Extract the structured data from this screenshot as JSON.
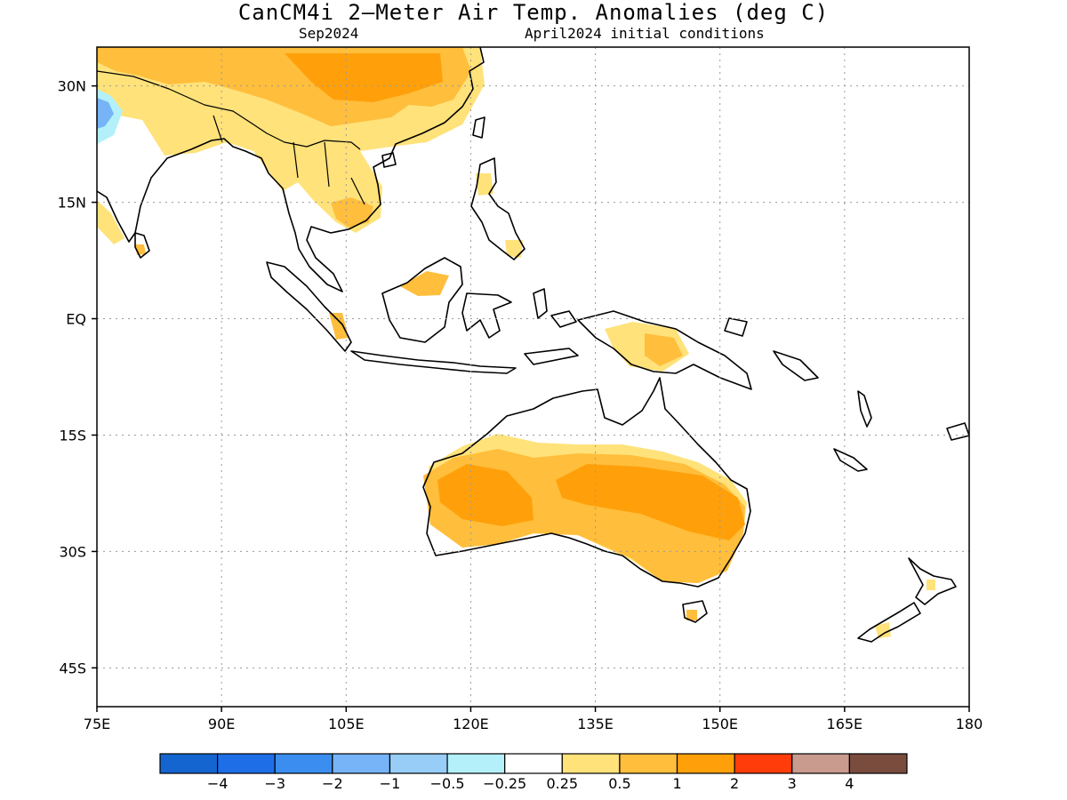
{
  "title": "CanCM4i 2—Meter Air Temp. Anomalies (deg C)",
  "subtitle_left": "Sep2024",
  "subtitle_right": "April2024 initial conditions",
  "map": {
    "lon_range": [
      75,
      180
    ],
    "lat_range": [
      -50,
      35
    ],
    "grid": "dotted",
    "lat_ticks": [
      {
        "label": "30N",
        "lat": 30
      },
      {
        "label": "15N",
        "lat": 15
      },
      {
        "label": "EQ",
        "lat": 0
      },
      {
        "label": "15S",
        "lat": -15
      },
      {
        "label": "30S",
        "lat": -30
      },
      {
        "label": "45S",
        "lat": -45
      }
    ],
    "lon_ticks": [
      {
        "label": "75E",
        "lon": 75
      },
      {
        "label": "90E",
        "lon": 90
      },
      {
        "label": "105E",
        "lon": 105
      },
      {
        "label": "120E",
        "lon": 120
      },
      {
        "label": "135E",
        "lon": 135
      },
      {
        "label": "150E",
        "lon": 150
      },
      {
        "label": "165E",
        "lon": 165
      },
      {
        "label": "180",
        "lon": 180
      }
    ]
  },
  "colorbar": {
    "colors": [
      "#1565d0",
      "#1e6ee8",
      "#3b8ef0",
      "#76b4f7",
      "#98cdf8",
      "#b3f0f9",
      "#ffffff",
      "#ffe27a",
      "#ffbe3c",
      "#ffa00a",
      "#ff3c0a",
      "#c99a8e",
      "#7a4c3e"
    ],
    "labels": [
      "−4",
      "−3",
      "−2",
      "−1",
      "−0.5",
      "−0.25",
      "0.25",
      "0.5",
      "1",
      "2",
      "3",
      "4"
    ]
  }
}
